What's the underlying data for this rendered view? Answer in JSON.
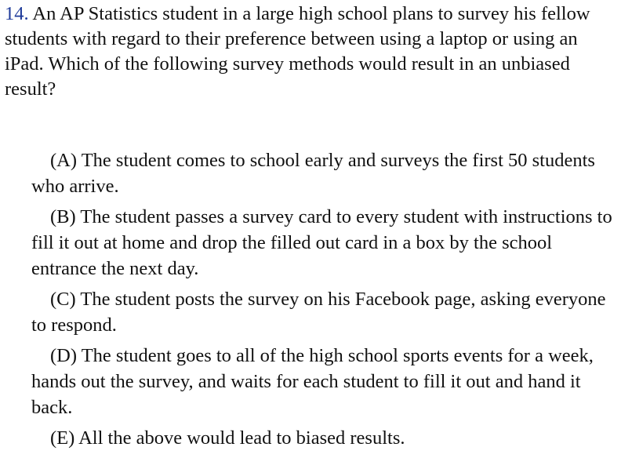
{
  "question": {
    "number": "14.",
    "text": "An AP Statistics student in a large high school plans to survey his fellow students with regard to their preference between using a laptop or using an iPad. Which of the following survey methods would result in an unbiased result?"
  },
  "choices": [
    {
      "label": "(A)",
      "text": "The student comes to school early and surveys the first 50 students who arrive."
    },
    {
      "label": "(B)",
      "text": "The student passes a survey card to every student with instructions to fill it out at home and drop the filled out card in a box by the school entrance the next day."
    },
    {
      "label": "(C)",
      "text": "The student posts the survey on his Facebook page, asking everyone to respond."
    },
    {
      "label": "(D)",
      "text": "The student goes to all of the high school sports events for a week, hands out the survey, and waits for each student to fill it out and hand it back."
    },
    {
      "label": "(E)",
      "text": "All the above would lead to biased results."
    }
  ]
}
